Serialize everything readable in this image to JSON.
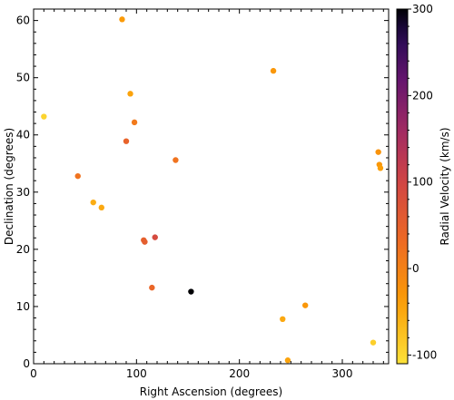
{
  "chart_data": {
    "type": "scatter",
    "xlabel": "Right Ascension (degrees)",
    "ylabel": "Declination (degrees)",
    "xlim": [
      0,
      345
    ],
    "ylim": [
      0,
      62
    ],
    "x_ticks": [
      0,
      100,
      200,
      300
    ],
    "y_ticks": [
      0,
      10,
      20,
      30,
      40,
      50,
      60
    ],
    "grid": false,
    "colorbar": {
      "label": "Radial Velocity (km/s)",
      "colormap": "inferno_r",
      "min": -110,
      "max": 300,
      "ticks": [
        -100,
        0,
        100,
        200,
        300
      ]
    },
    "points": [
      {
        "x": 86,
        "y": 60.2,
        "c": -35
      },
      {
        "x": 233,
        "y": 51.2,
        "c": -30
      },
      {
        "x": 94,
        "y": 47.2,
        "c": -45
      },
      {
        "x": 10,
        "y": 43.2,
        "c": -95
      },
      {
        "x": 98,
        "y": 42.2,
        "c": 10
      },
      {
        "x": 90,
        "y": 38.9,
        "c": 45
      },
      {
        "x": 335,
        "y": 37.0,
        "c": -25
      },
      {
        "x": 138,
        "y": 35.6,
        "c": 20
      },
      {
        "x": 336,
        "y": 34.8,
        "c": -30
      },
      {
        "x": 337,
        "y": 34.2,
        "c": -40
      },
      {
        "x": 43,
        "y": 32.8,
        "c": 20
      },
      {
        "x": 58,
        "y": 28.2,
        "c": -55
      },
      {
        "x": 66,
        "y": 27.3,
        "c": -50
      },
      {
        "x": 118,
        "y": 22.1,
        "c": 90
      },
      {
        "x": 107,
        "y": 21.6,
        "c": 50
      },
      {
        "x": 108,
        "y": 21.3,
        "c": 55
      },
      {
        "x": 115,
        "y": 13.3,
        "c": 40
      },
      {
        "x": 153,
        "y": 12.6,
        "c": 300
      },
      {
        "x": 264,
        "y": 10.2,
        "c": -30
      },
      {
        "x": 242,
        "y": 7.8,
        "c": -50
      },
      {
        "x": 330,
        "y": 3.7,
        "c": -90
      },
      {
        "x": 247,
        "y": 0.6,
        "c": -45
      }
    ]
  }
}
